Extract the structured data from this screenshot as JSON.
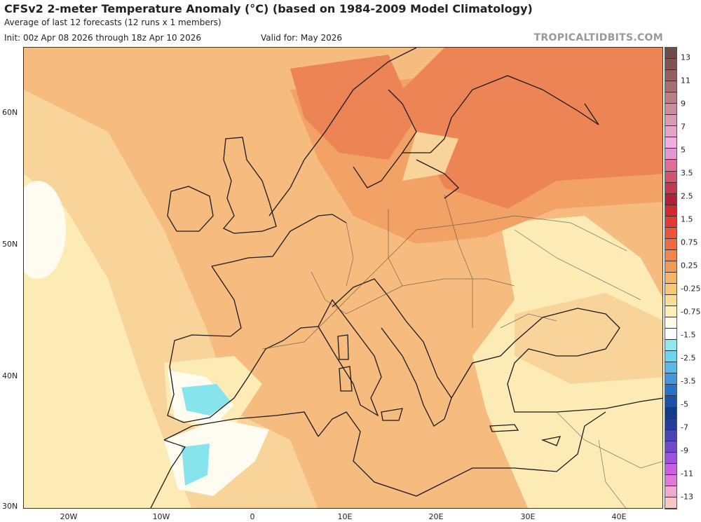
{
  "header": {
    "title": "CFSv2 2-meter Temperature Anomaly (°C) (based on 1984-2009 Model Climatology)",
    "subtitle": "Average of last 12 forecasts (12 runs x 1 members)",
    "init": "Init: 00z Apr 08 2026 through 18z Apr 10 2026",
    "valid": "Valid for: May 2026",
    "brand": "TROPICALTIDBITS.COM"
  },
  "axes": {
    "lat_labels": [
      "60N",
      "50N",
      "40N",
      "30N"
    ],
    "lon_labels": [
      "20W",
      "10W",
      "0",
      "10E",
      "20E",
      "30E",
      "40E"
    ]
  },
  "colorbar": {
    "labels": [
      "13",
      "11",
      "9",
      "7",
      "5",
      "3.5",
      "2.5",
      "1.5",
      "0.75",
      "0.25",
      "-0.25",
      "-0.75",
      "-1.5",
      "-2.5",
      "-3.5",
      "-5",
      "-7",
      "-9",
      "-11",
      "-13"
    ],
    "colors": [
      "#6e4a48",
      "#7f5552",
      "#93605f",
      "#a66f72",
      "#b87f88",
      "#c98d9e",
      "#d89bb4",
      "#e6a4c8",
      "#f1aee0",
      "#e597d0",
      "#de6f98",
      "#d2546e",
      "#c23850",
      "#b02038",
      "#d02a30",
      "#e03c34",
      "#e8543c",
      "#ee6a44",
      "#f2844c",
      "#f49a58",
      "#f6b466",
      "#f8c878",
      "#fadc94",
      "#fcf0b4",
      "#fffde8",
      "#fdfdfd",
      "#8ee8ee",
      "#6cd6ee",
      "#58b8ea",
      "#4496de",
      "#2a72c8",
      "#1a52a8",
      "#123c88",
      "#283c9a",
      "#4a44b4",
      "#6e4ac8",
      "#9c52dc",
      "#c860e0",
      "#e07ad8",
      "#eeaad0",
      "#f6c8c4"
    ]
  },
  "map": {
    "colors": {
      "base": "#f6bb7e",
      "warm": "#f1a264",
      "hot": "#ec8456",
      "light": "#f9d49a",
      "pale": "#fcebb4",
      "neutral": "#fefcf0",
      "cool": "#88e4ec",
      "coast": "#1a1a1a"
    }
  }
}
